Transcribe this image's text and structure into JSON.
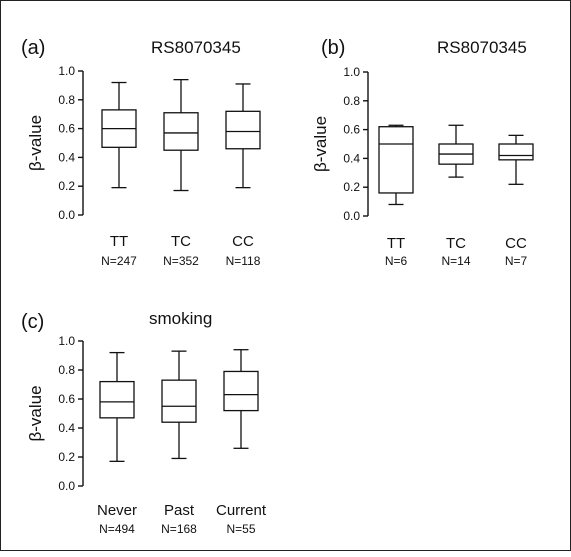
{
  "chart_data": [
    {
      "type": "box",
      "panel_label": "(a)",
      "title": "RS8070345",
      "ylabel": "β-value",
      "ylim": [
        0,
        1
      ],
      "yticks": [
        "0.0",
        "0.2",
        "0.4",
        "0.6",
        "0.8",
        "1.0"
      ],
      "categories": [
        "TT",
        "TC",
        "CC"
      ],
      "counts": [
        "N=247",
        "N=352",
        "N=118"
      ],
      "boxes": [
        {
          "min": 0.19,
          "q1": 0.47,
          "median": 0.6,
          "q3": 0.73,
          "max": 0.92
        },
        {
          "min": 0.17,
          "q1": 0.45,
          "median": 0.57,
          "q3": 0.71,
          "max": 0.94
        },
        {
          "min": 0.19,
          "q1": 0.46,
          "median": 0.58,
          "q3": 0.72,
          "max": 0.91
        }
      ]
    },
    {
      "type": "box",
      "panel_label": "(b)",
      "title": "RS8070345",
      "ylabel": "β-value",
      "ylim": [
        0,
        1
      ],
      "yticks": [
        "0.0",
        "0.2",
        "0.4",
        "0.6",
        "0.8",
        "1.0"
      ],
      "categories": [
        "TT",
        "TC",
        "CC"
      ],
      "counts": [
        "N=6",
        "N=14",
        "N=7"
      ],
      "boxes": [
        {
          "min": 0.08,
          "q1": 0.16,
          "median": 0.5,
          "q3": 0.62,
          "max": 0.63
        },
        {
          "min": 0.27,
          "q1": 0.36,
          "median": 0.43,
          "q3": 0.5,
          "max": 0.63
        },
        {
          "min": 0.22,
          "q1": 0.39,
          "median": 0.42,
          "q3": 0.5,
          "max": 0.56
        }
      ]
    },
    {
      "type": "box",
      "panel_label": "(c)",
      "title": "smoking",
      "ylabel": "β-value",
      "ylim": [
        0,
        1
      ],
      "yticks": [
        "0.0",
        "0.2",
        "0.4",
        "0.6",
        "0.8",
        "1.0"
      ],
      "categories": [
        "Never",
        "Past",
        "Current"
      ],
      "counts": [
        "N=494",
        "N=168",
        "N=55"
      ],
      "boxes": [
        {
          "min": 0.17,
          "q1": 0.47,
          "median": 0.58,
          "q3": 0.72,
          "max": 0.92
        },
        {
          "min": 0.19,
          "q1": 0.44,
          "median": 0.55,
          "q3": 0.73,
          "max": 0.93
        },
        {
          "min": 0.26,
          "q1": 0.52,
          "median": 0.63,
          "q3": 0.79,
          "max": 0.94
        }
      ]
    }
  ]
}
